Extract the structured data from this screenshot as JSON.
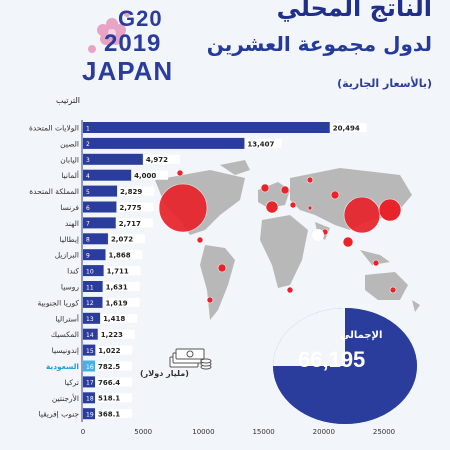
{
  "logo": {
    "line1": "G20",
    "line2": "2019",
    "line3": "JAPAN"
  },
  "header": {
    "title_line1": "الناتج المحلي",
    "title_line2": "لدول مجموعة العشرين",
    "subtitle": "(بالأسعار الجارية)"
  },
  "colors": {
    "bar": "#2b3d9c",
    "highlight": "#43b3e6",
    "bubble": "#e8232a",
    "map": "#b8b8b8",
    "pie": "#2b3d9c",
    "pie_rest": "#3d5bbf"
  },
  "icons": {
    "money": "banknote-stack-icon",
    "map": "world-map-icon"
  },
  "chart_data": {
    "type": "bar",
    "orientation": "horizontal",
    "rank_header": "الترتيب",
    "unit_label": "(مليار دولار)",
    "highlight_category": "السعودية",
    "categories": [
      "الولايات المتحدة",
      "الصين",
      "اليابان",
      "ألمانيا",
      "المملكة المتحدة",
      "فرنسا",
      "الهند",
      "إيطاليا",
      "البرازيل",
      "كندا",
      "روسيا",
      "كوريا الجنوبية",
      "أستراليا",
      "المكسيك",
      "إندونيسيا",
      "السعودية",
      "تركيا",
      "الأرجنتين",
      "جنوب إفريقيا"
    ],
    "ranks": [
      "1",
      "2",
      "3",
      "4",
      "5",
      "6",
      "7",
      "8",
      "9",
      "10",
      "11",
      "12",
      "13",
      "14",
      "15",
      "16",
      "17",
      "18",
      "19"
    ],
    "values": [
      20494,
      13407,
      4972,
      4000,
      2829,
      2775,
      2717,
      2072,
      1868,
      1711,
      1631,
      1619,
      1418,
      1223,
      1022,
      782.5,
      766.4,
      518.1,
      368.1
    ],
    "value_labels": [
      "20,494",
      "13,407",
      "4,972",
      "4,000",
      "2,829",
      "2,775",
      "2,717",
      "2,072",
      "1,868",
      "1,711",
      "1,631",
      "1,619",
      "1,418",
      "1,223",
      "1,022",
      "782.5",
      "766.4",
      "518.1",
      "368.1"
    ],
    "xlim": [
      0,
      25000
    ],
    "xticks": [
      0,
      5000,
      10000,
      15000,
      20000,
      25000
    ],
    "grid": false,
    "total": {
      "label": "الإجمالي",
      "value": "66,195"
    }
  }
}
